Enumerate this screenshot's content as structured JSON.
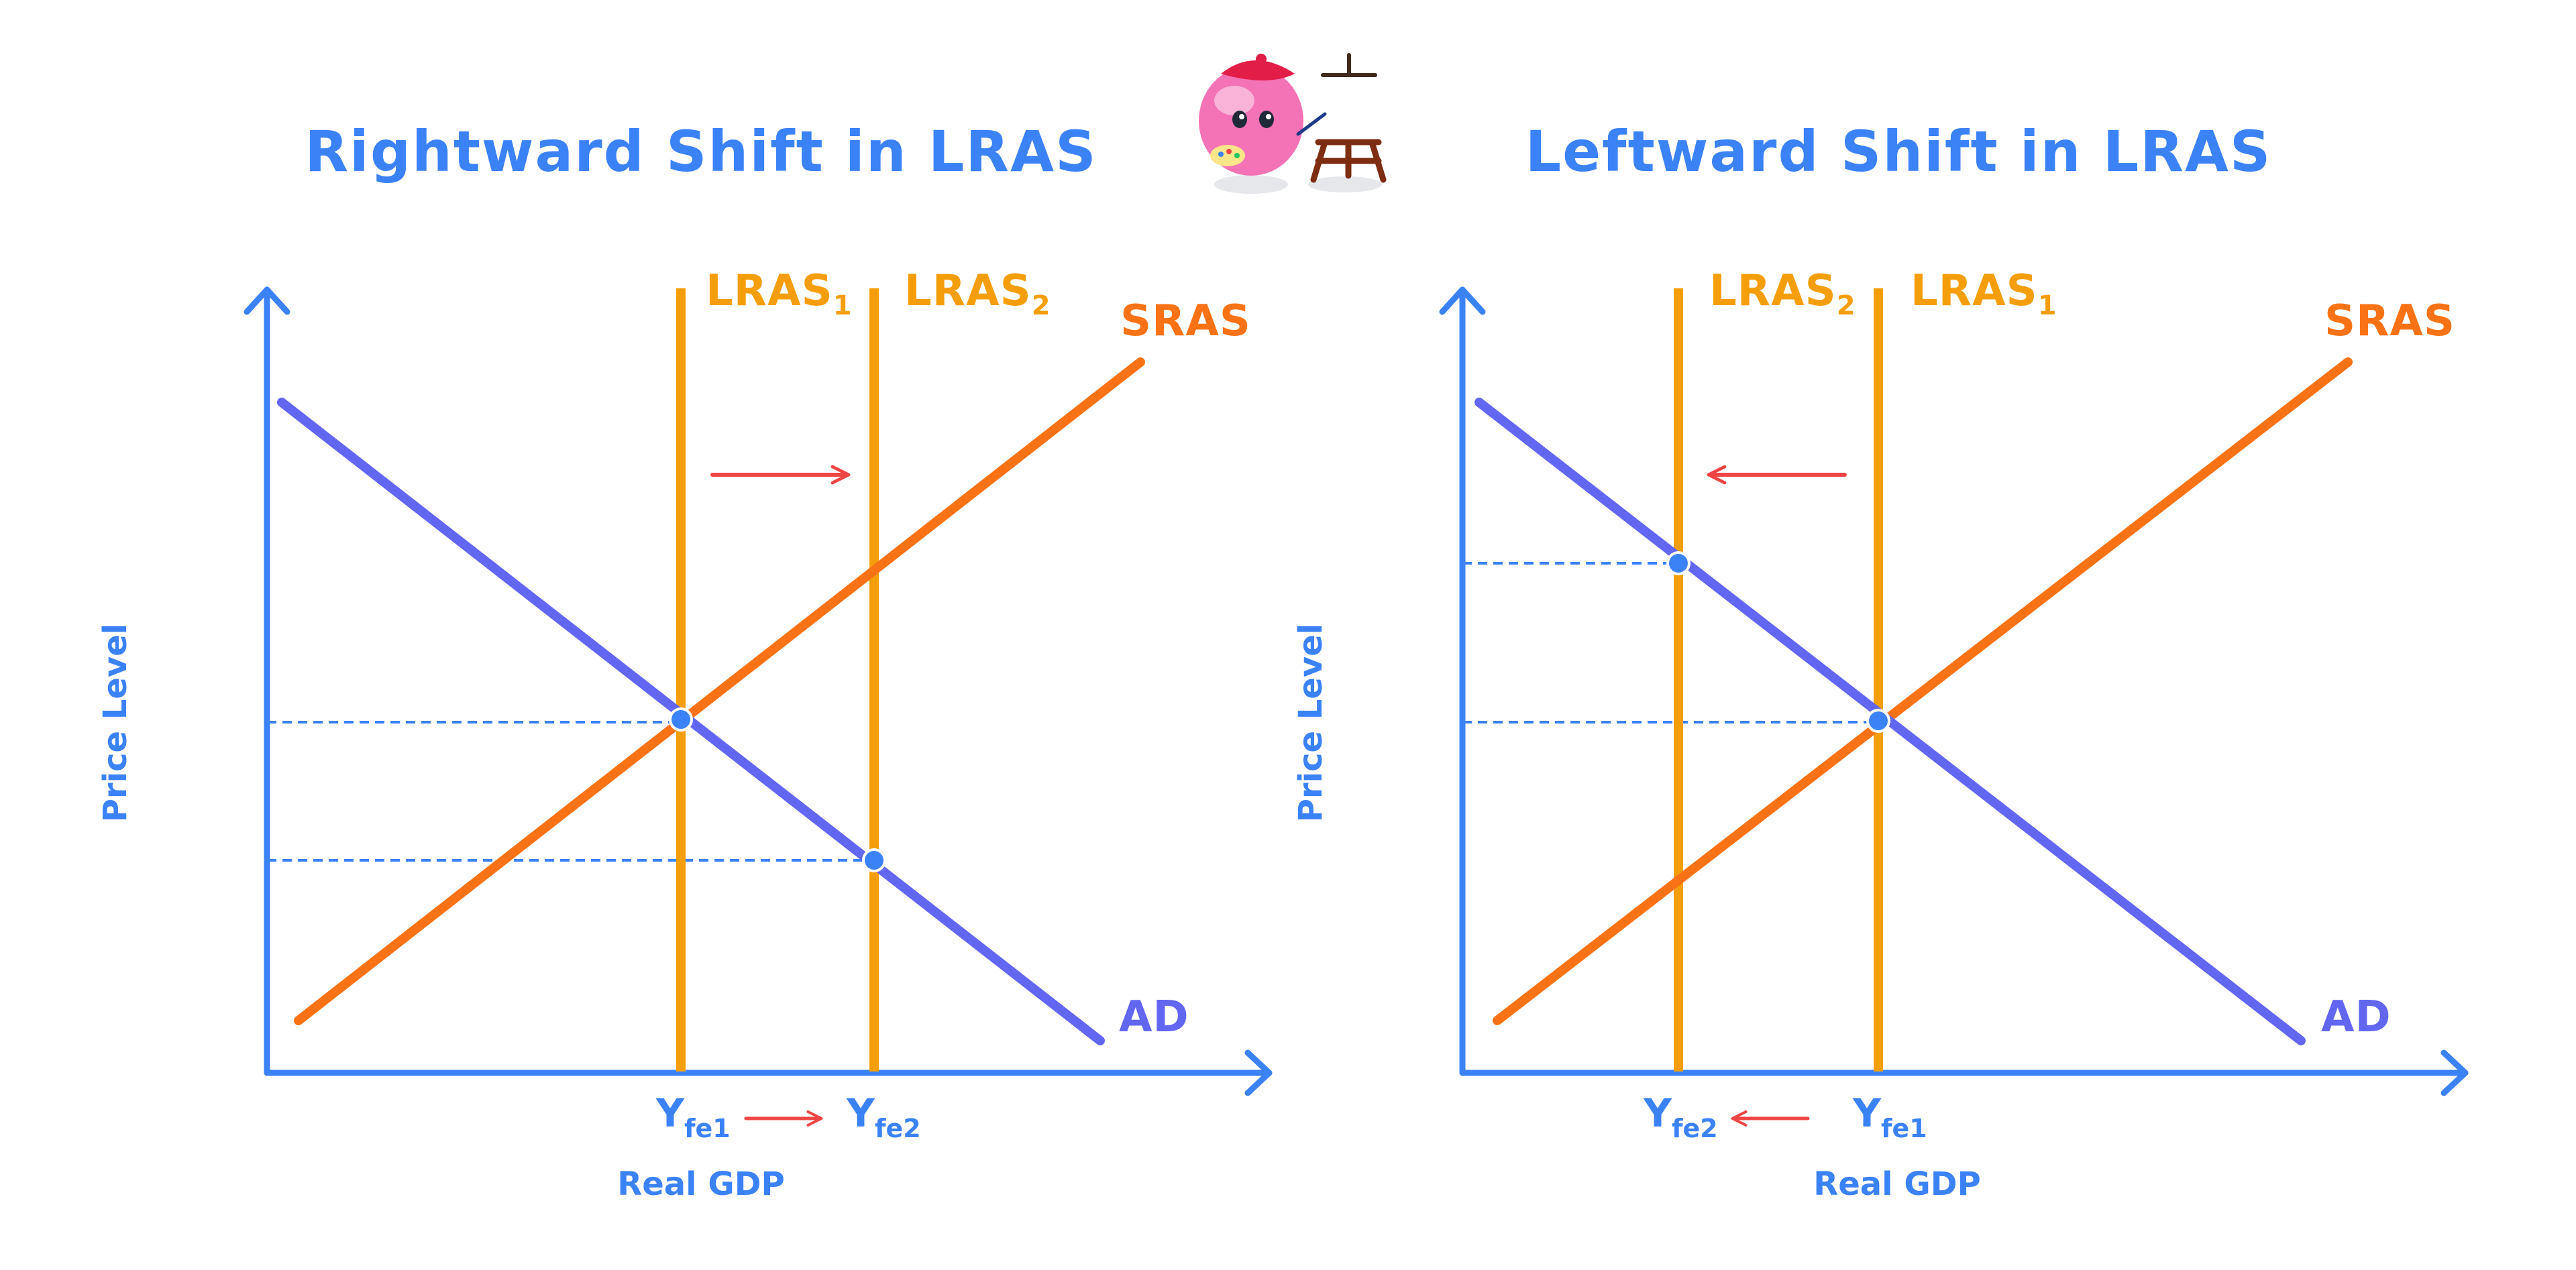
{
  "colors": {
    "axis": "#3b82f6",
    "ad": "#6366f1",
    "sras": "#f97316",
    "lras": "#f59e0b",
    "arrow": "#ef4444",
    "point": "#3b82f6",
    "guide": "#3b82f6",
    "mascot_body": "#f472b6",
    "easel": "#7c2d12"
  },
  "icons": {
    "mascot": "painter-mascot-icon"
  },
  "panels": [
    {
      "id": "left",
      "title": "Rightward Shift in LRAS",
      "y_axis_label": "Price Level",
      "x_axis_label": "Real GDP",
      "lras_a": {
        "main": "LRAS",
        "sub": "1"
      },
      "lras_b": {
        "main": "LRAS",
        "sub": "2"
      },
      "sras_label": "SRAS",
      "ad_label": "AD",
      "yfe_a": {
        "main": "Y",
        "sub": "fe1"
      },
      "yfe_b": {
        "main": "Y",
        "sub": "fe2"
      },
      "shift_direction": "right"
    },
    {
      "id": "right",
      "title": "Leftward Shift in LRAS",
      "y_axis_label": "Price Level",
      "x_axis_label": "Real GDP",
      "lras_a": {
        "main": "LRAS",
        "sub": "2"
      },
      "lras_b": {
        "main": "LRAS",
        "sub": "1"
      },
      "sras_label": "SRAS",
      "ad_label": "AD",
      "yfe_a": {
        "main": "Y",
        "sub": "fe2"
      },
      "yfe_b": {
        "main": "Y",
        "sub": "fe1"
      },
      "shift_direction": "left"
    }
  ]
}
